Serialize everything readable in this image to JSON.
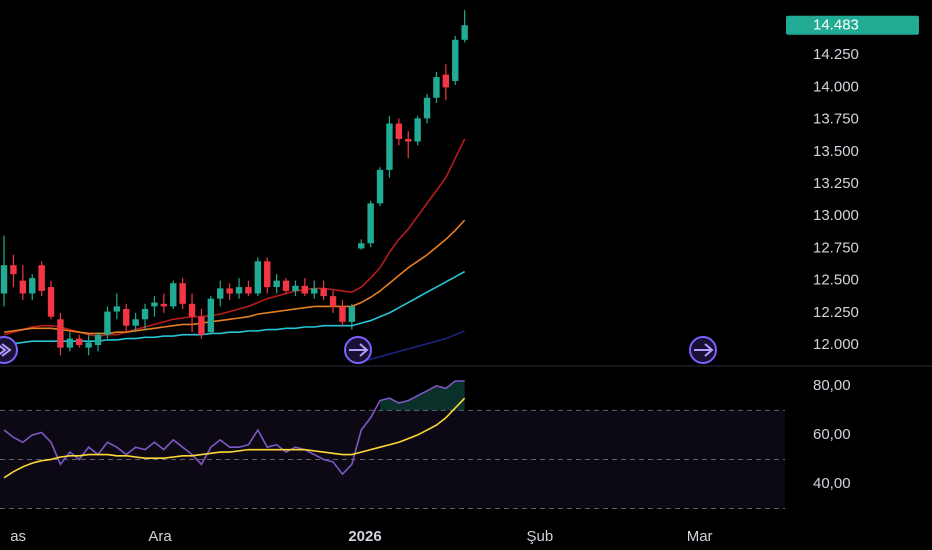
{
  "chart_data": [
    {
      "type": "candlestick",
      "xlim": [
        -0.43,
        83.08
      ],
      "ylim": [
        11.845,
        14.679
      ],
      "yticks": [
        {
          "value": 12.0,
          "label": "12.000"
        },
        {
          "value": 12.25,
          "label": "12.250"
        },
        {
          "value": 12.5,
          "label": "12.500"
        },
        {
          "value": 12.75,
          "label": "12.750"
        },
        {
          "value": 13.0,
          "label": "13.000"
        },
        {
          "value": 13.25,
          "label": "13.250"
        },
        {
          "value": 13.5,
          "label": "13.500"
        },
        {
          "value": 13.75,
          "label": "13.750"
        },
        {
          "value": 14.0,
          "label": "14.000"
        },
        {
          "value": 14.25,
          "label": "14.250"
        }
      ],
      "up_color": "#22ab94",
      "down_color": "#f23645",
      "open": [
        12.4,
        12.62,
        12.5,
        12.4,
        12.62,
        12.45,
        12.2,
        11.98,
        12.05,
        11.98,
        12.0,
        12.08,
        12.26,
        12.28,
        12.15,
        12.2,
        12.3,
        12.32,
        12.3,
        12.48,
        12.32,
        12.22,
        12.1,
        12.36,
        12.44,
        12.4,
        12.45,
        12.4,
        12.65,
        12.45,
        12.5,
        12.42,
        12.46,
        12.4,
        12.44,
        12.38,
        12.3,
        12.18,
        12.75,
        12.79,
        13.1,
        13.36,
        13.72,
        13.6,
        13.58,
        13.76,
        13.92,
        14.1,
        14.05,
        14.37
      ],
      "high": [
        12.85,
        12.7,
        12.62,
        12.55,
        12.65,
        12.5,
        12.25,
        12.1,
        12.08,
        12.08,
        12.1,
        12.3,
        12.4,
        12.32,
        12.25,
        12.32,
        12.38,
        12.4,
        12.5,
        12.52,
        12.4,
        12.28,
        12.38,
        12.5,
        12.48,
        12.52,
        12.5,
        12.68,
        12.68,
        12.55,
        12.52,
        12.5,
        12.52,
        12.5,
        12.5,
        12.42,
        12.35,
        12.32,
        12.82,
        13.12,
        13.38,
        13.78,
        13.76,
        13.66,
        13.78,
        13.95,
        14.12,
        14.18,
        14.4,
        14.6
      ],
      "low": [
        12.3,
        12.45,
        12.35,
        12.35,
        12.38,
        12.2,
        11.92,
        11.95,
        11.98,
        11.92,
        11.95,
        12.05,
        12.2,
        12.1,
        12.1,
        12.12,
        12.22,
        12.25,
        12.28,
        12.28,
        12.1,
        12.05,
        12.08,
        12.3,
        12.35,
        12.36,
        12.38,
        12.38,
        12.4,
        12.4,
        12.4,
        12.38,
        12.38,
        12.36,
        12.35,
        12.25,
        12.15,
        12.12,
        12.74,
        12.76,
        13.08,
        13.3,
        13.55,
        13.45,
        13.55,
        13.72,
        13.88,
        13.9,
        14.02,
        14.35
      ],
      "close": [
        12.62,
        12.55,
        12.4,
        12.52,
        12.42,
        12.22,
        11.98,
        12.05,
        12.0,
        12.02,
        12.08,
        12.26,
        12.3,
        12.15,
        12.2,
        12.28,
        12.33,
        12.3,
        12.48,
        12.32,
        12.22,
        12.08,
        12.36,
        12.44,
        12.4,
        12.45,
        12.4,
        12.65,
        12.45,
        12.5,
        12.42,
        12.46,
        12.4,
        12.44,
        12.38,
        12.3,
        12.18,
        12.3,
        12.79,
        13.1,
        13.36,
        13.72,
        13.6,
        13.58,
        13.76,
        13.92,
        14.08,
        14.0,
        14.37,
        14.483
      ],
      "last_price": 14.483,
      "last_price_label": "14.483",
      "series": [
        {
          "color": "#b71c1c",
          "values": [
            12.08,
            12.1,
            12.12,
            12.14,
            12.15,
            12.15,
            12.14,
            12.12,
            12.1,
            12.08,
            12.07,
            12.08,
            12.08,
            12.1,
            12.12,
            12.14,
            12.16,
            12.18,
            12.2,
            12.21,
            12.22,
            12.22,
            12.23,
            12.24,
            12.26,
            12.28,
            12.3,
            12.33,
            12.36,
            12.38,
            12.4,
            12.42,
            12.43,
            12.44,
            12.44,
            12.43,
            12.42,
            12.41,
            12.45,
            12.52,
            12.6,
            12.72,
            12.82,
            12.9,
            13.0,
            13.1,
            13.2,
            13.3,
            13.45,
            13.6
          ]
        },
        {
          "color": "#e67e22",
          "values": [
            12.1,
            12.11,
            12.12,
            12.13,
            12.13,
            12.13,
            12.12,
            12.11,
            12.1,
            12.09,
            12.09,
            12.09,
            12.1,
            12.1,
            12.11,
            12.12,
            12.13,
            12.14,
            12.15,
            12.16,
            12.16,
            12.17,
            12.18,
            12.19,
            12.2,
            12.21,
            12.22,
            12.24,
            12.25,
            12.26,
            12.27,
            12.28,
            12.29,
            12.3,
            12.3,
            12.3,
            12.3,
            12.3,
            12.33,
            12.37,
            12.42,
            12.48,
            12.54,
            12.6,
            12.65,
            12.7,
            12.76,
            12.82,
            12.89,
            12.97
          ]
        },
        {
          "color": "#26c6da",
          "values": [
            12.0,
            12.01,
            12.02,
            12.03,
            12.03,
            12.03,
            12.03,
            12.03,
            12.03,
            12.03,
            12.03,
            12.04,
            12.04,
            12.05,
            12.05,
            12.06,
            12.06,
            12.07,
            12.07,
            12.08,
            12.08,
            12.08,
            12.09,
            12.09,
            12.1,
            12.1,
            12.11,
            12.11,
            12.12,
            12.12,
            12.13,
            12.13,
            12.14,
            12.14,
            12.15,
            12.15,
            12.15,
            12.15,
            12.17,
            12.19,
            12.22,
            12.25,
            12.29,
            12.33,
            12.37,
            12.41,
            12.45,
            12.49,
            12.53,
            12.57
          ]
        },
        {
          "color": "#1a237e",
          "values": [
            null,
            null,
            null,
            null,
            null,
            null,
            null,
            null,
            null,
            null,
            null,
            null,
            null,
            null,
            null,
            null,
            null,
            null,
            null,
            null,
            null,
            null,
            null,
            null,
            null,
            null,
            null,
            null,
            null,
            null,
            null,
            null,
            null,
            null,
            null,
            null,
            null,
            null,
            11.87,
            11.89,
            11.91,
            11.93,
            11.95,
            11.97,
            11.99,
            12.01,
            12.03,
            12.05,
            12.08,
            12.11
          ]
        }
      ]
    },
    {
      "type": "line",
      "xlim": [
        -0.43,
        83.08
      ],
      "xticks": [
        {
          "value": 1.5,
          "label": "as"
        },
        {
          "value": 16.6,
          "label": "Ara"
        },
        {
          "value": 38.4,
          "label": "2026"
        },
        {
          "value": 57,
          "label": "Şub"
        },
        {
          "value": 74,
          "label": "Mar"
        }
      ],
      "ylim": [
        25.3,
        87.3
      ],
      "yticks": [
        {
          "value": 40,
          "label": "40,00"
        },
        {
          "value": 60,
          "label": "60,00"
        },
        {
          "value": 80,
          "label": "80,00"
        }
      ],
      "levels": [
        30,
        50,
        70
      ],
      "series": [
        {
          "color": "#7e57c2",
          "values": [
            62,
            59,
            57,
            60,
            61,
            57,
            48,
            53,
            50,
            55,
            52,
            57,
            55,
            52,
            55,
            54,
            57,
            54,
            58,
            55,
            52,
            48,
            55,
            58,
            55,
            55,
            56,
            62,
            55,
            56,
            53,
            55,
            54,
            52,
            50,
            49,
            44,
            48,
            62,
            67,
            74,
            75,
            73,
            74,
            76,
            78,
            80,
            79,
            82,
            82
          ]
        },
        {
          "color": "#fdd835",
          "values": [
            42.5,
            45,
            47,
            48.5,
            49.5,
            50,
            51,
            51.5,
            51.5,
            52,
            52,
            52,
            51.5,
            51.5,
            51,
            50.5,
            50.5,
            50.5,
            51,
            51.5,
            51.5,
            52,
            52.5,
            53,
            53,
            53.5,
            54,
            54,
            54,
            54,
            54,
            54,
            54,
            53.5,
            53,
            52.5,
            52,
            52,
            53,
            54,
            55,
            56,
            57,
            58.5,
            60,
            62,
            64,
            67,
            71,
            75
          ]
        }
      ]
    }
  ]
}
